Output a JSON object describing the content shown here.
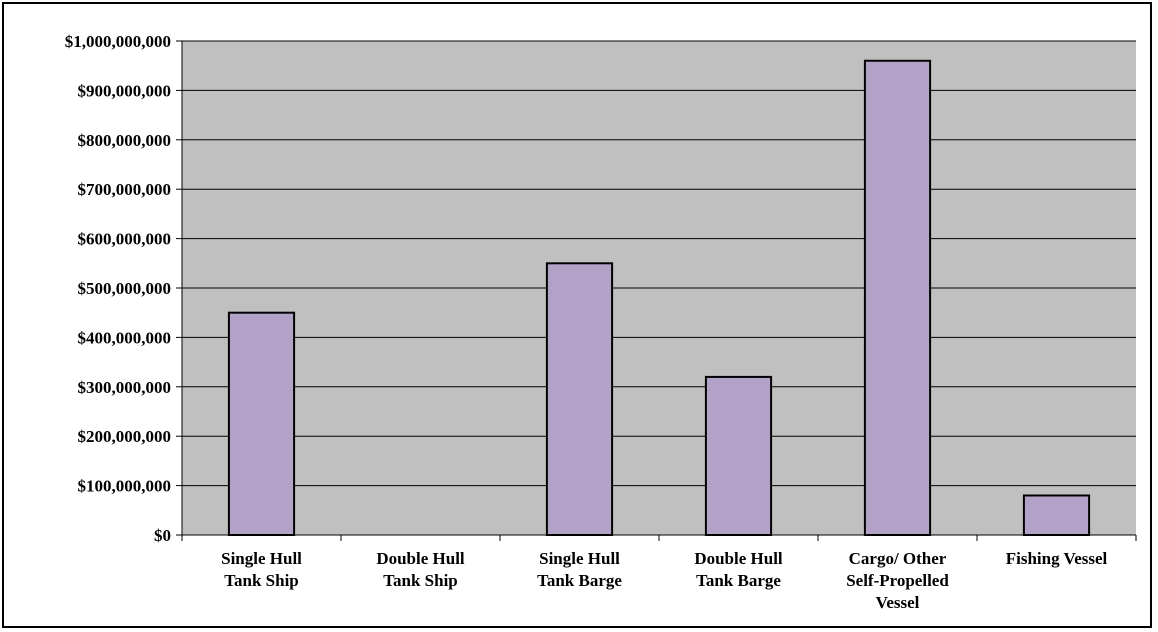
{
  "chart_data": {
    "type": "bar",
    "title": "",
    "xlabel": "",
    "ylabel": "",
    "ylim": [
      0,
      1000000000
    ],
    "yticks": [
      {
        "value": 0,
        "label": "$0"
      },
      {
        "value": 100000000,
        "label": "$100,000,000"
      },
      {
        "value": 200000000,
        "label": "$200,000,000"
      },
      {
        "value": 300000000,
        "label": "$300,000,000"
      },
      {
        "value": 400000000,
        "label": "$400,000,000"
      },
      {
        "value": 500000000,
        "label": "$500,000,000"
      },
      {
        "value": 600000000,
        "label": "$600,000,000"
      },
      {
        "value": 700000000,
        "label": "$700,000,000"
      },
      {
        "value": 800000000,
        "label": "$800,000,000"
      },
      {
        "value": 900000000,
        "label": "$900,000,000"
      },
      {
        "value": 1000000000,
        "label": "$1,000,000,000"
      }
    ],
    "categories": [
      [
        "Single Hull",
        "Tank Ship"
      ],
      [
        "Double Hull",
        "Tank Ship"
      ],
      [
        "Single Hull",
        "Tank Barge"
      ],
      [
        "Double Hull",
        "Tank Barge"
      ],
      [
        "Cargo/ Other",
        "Self-Propelled",
        "Vessel"
      ],
      [
        "Fishing Vessel"
      ]
    ],
    "values": [
      450000000,
      0,
      550000000,
      320000000,
      960000000,
      80000000
    ],
    "grid": true,
    "legend": "none",
    "colors": {
      "bar": "#b3a2c7",
      "plot_background": "#c0c0c0",
      "gridline": "#000000"
    }
  }
}
